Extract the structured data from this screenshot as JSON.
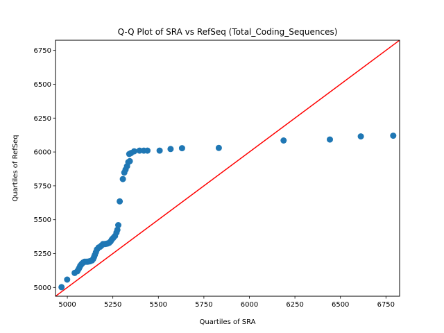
{
  "chart_data": {
    "type": "scatter",
    "title": "Q-Q Plot of SRA vs RefSeq (Total_Coding_Sequences)",
    "xlabel": "Quartiles of SRA",
    "ylabel": "Quartiles of RefSeq",
    "xlim": [
      4935,
      6825
    ],
    "ylim": [
      4935,
      6825
    ],
    "x_ticks": [
      5000,
      5250,
      5500,
      5750,
      6000,
      6250,
      6500,
      6750
    ],
    "y_ticks": [
      5000,
      5250,
      5500,
      5750,
      6000,
      6250,
      6500,
      6750
    ],
    "x_tick_labels": [
      "5000",
      "5250",
      "5500",
      "5750",
      "6000",
      "6250",
      "6500",
      "6750"
    ],
    "y_tick_labels": [
      "5000",
      "5250",
      "5500",
      "5750",
      "6000",
      "6250",
      "6500",
      "6750"
    ],
    "grid": false,
    "legend": "none",
    "marker_color": "#1f77b4",
    "line_color": "#ff0000",
    "reference_line": "y = x",
    "points": [
      [
        4968,
        5002
      ],
      [
        4999,
        5058
      ],
      [
        5040,
        5107
      ],
      [
        5055,
        5120
      ],
      [
        5062,
        5135
      ],
      [
        5066,
        5145
      ],
      [
        5071,
        5160
      ],
      [
        5077,
        5170
      ],
      [
        5082,
        5178
      ],
      [
        5088,
        5185
      ],
      [
        5095,
        5190
      ],
      [
        5103,
        5190
      ],
      [
        5111,
        5190
      ],
      [
        5120,
        5192
      ],
      [
        5128,
        5195
      ],
      [
        5136,
        5200
      ],
      [
        5142,
        5210
      ],
      [
        5147,
        5225
      ],
      [
        5151,
        5240
      ],
      [
        5157,
        5260
      ],
      [
        5163,
        5280
      ],
      [
        5172,
        5295
      ],
      [
        5180,
        5300
      ],
      [
        5188,
        5310
      ],
      [
        5196,
        5320
      ],
      [
        5205,
        5320
      ],
      [
        5214,
        5322
      ],
      [
        5222,
        5325
      ],
      [
        5230,
        5330
      ],
      [
        5238,
        5340
      ],
      [
        5245,
        5355
      ],
      [
        5252,
        5365
      ],
      [
        5262,
        5380
      ],
      [
        5270,
        5405
      ],
      [
        5275,
        5425
      ],
      [
        5280,
        5460
      ],
      [
        5288,
        5635
      ],
      [
        5305,
        5800
      ],
      [
        5313,
        5848
      ],
      [
        5320,
        5870
      ],
      [
        5328,
        5895
      ],
      [
        5335,
        5925
      ],
      [
        5343,
        5932
      ],
      [
        5340,
        5985
      ],
      [
        5350,
        5992
      ],
      [
        5367,
        6005
      ],
      [
        5397,
        6010
      ],
      [
        5420,
        6010
      ],
      [
        5440,
        6010
      ],
      [
        5507,
        6010
      ],
      [
        5567,
        6022
      ],
      [
        5630,
        6028
      ],
      [
        5832,
        6030
      ],
      [
        6188,
        6085
      ],
      [
        6442,
        6092
      ],
      [
        6612,
        6115
      ],
      [
        6790,
        6120
      ]
    ]
  }
}
